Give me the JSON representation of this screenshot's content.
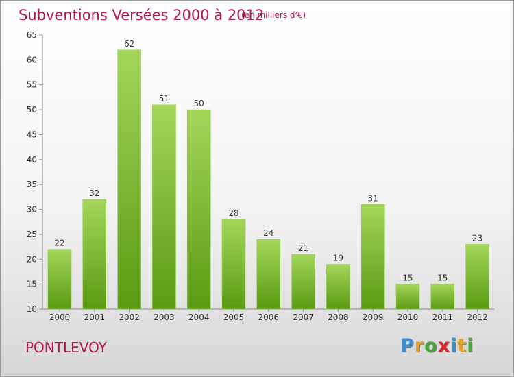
{
  "header": {
    "title": "Subventions Versées 2000 à 2012",
    "subtitle": "(en milliers d'€)"
  },
  "footer": {
    "place": "PONTLEVOY",
    "logo_text": "Proxiti",
    "logo_colors": [
      "#3a8fd6",
      "#e8a020",
      "#4aa83a",
      "#d62828",
      "#3a8fd6",
      "#e8a020",
      "#4aa83a"
    ]
  },
  "colors": {
    "bar_top": "#a4d65a",
    "bar_bottom": "#5a9a12",
    "accent": "#b5144d",
    "axis": "#8a8a8a"
  },
  "chart_data": {
    "type": "bar",
    "title": "Subventions Versées 2000 à 2012",
    "subtitle": "(en milliers d'€)",
    "categories": [
      "2000",
      "2001",
      "2002",
      "2003",
      "2004",
      "2005",
      "2006",
      "2007",
      "2008",
      "2009",
      "2010",
      "2011",
      "2012"
    ],
    "values": [
      22,
      32,
      62,
      51,
      50,
      28,
      24,
      21,
      19,
      31,
      15,
      15,
      23
    ],
    "ylim": [
      10,
      65
    ],
    "yticks": [
      10,
      15,
      20,
      25,
      30,
      35,
      40,
      45,
      50,
      55,
      60,
      65
    ],
    "grid": false,
    "data_labels": true
  }
}
